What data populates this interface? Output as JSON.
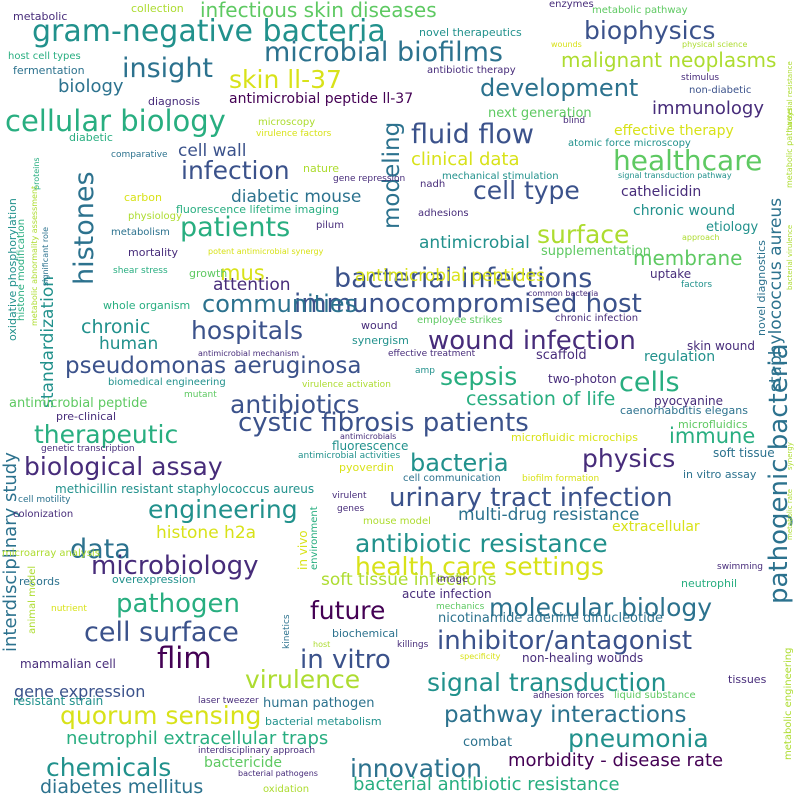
{
  "word_cloud": {
    "palette": {
      "purple": "#440154",
      "indigo": "#472c7a",
      "blue": "#3b528b",
      "steel": "#2c728e",
      "teal": "#21918c",
      "sea": "#28ae80",
      "green": "#5ec962",
      "lime": "#addc30",
      "yellow": "#d8e219"
    },
    "words": [
      {
        "text": "gram-negative bacteria",
        "color": "teal"
      },
      {
        "text": "cystic fibrosis patients",
        "color": "blue"
      },
      {
        "text": "immunocompromised host",
        "color": "blue"
      },
      {
        "text": "urinary tract infection",
        "color": "blue"
      },
      {
        "text": "bacterial infections",
        "color": "blue"
      },
      {
        "text": "pseudomonas aeruginosa",
        "color": "blue"
      },
      {
        "text": "wound infection",
        "color": "indigo"
      },
      {
        "text": "antibiotic resistance",
        "color": "teal"
      },
      {
        "text": "health care settings",
        "color": "yellow"
      },
      {
        "text": "signal transduction",
        "color": "teal"
      },
      {
        "text": "pathway interactions",
        "color": "steel"
      },
      {
        "text": "inhibitor/antagonist",
        "color": "blue"
      },
      {
        "text": "molecular biology",
        "color": "steel"
      },
      {
        "text": "microbial biofilms",
        "color": "steel"
      },
      {
        "text": "cellular biology",
        "color": "sea"
      },
      {
        "text": "biological assay",
        "color": "indigo"
      },
      {
        "text": "quorum sensing",
        "color": "yellow"
      },
      {
        "text": "pathogenic bacteria",
        "color": "steel"
      },
      {
        "text": "staphylococcus aureus",
        "color": "steel"
      },
      {
        "text": "interdisciplinary study",
        "color": "steel"
      },
      {
        "text": "healthcare",
        "color": "green"
      },
      {
        "text": "biophysics",
        "color": "blue"
      },
      {
        "text": "infectious skin diseases",
        "color": "green"
      },
      {
        "text": "malignant neoplasms",
        "color": "lime"
      },
      {
        "text": "development",
        "color": "steel"
      },
      {
        "text": "insight",
        "color": "steel"
      },
      {
        "text": "skin ll-37",
        "color": "yellow"
      },
      {
        "text": "fluid flow",
        "color": "blue"
      },
      {
        "text": "infection",
        "color": "blue"
      },
      {
        "text": "cell type",
        "color": "blue"
      },
      {
        "text": "patients",
        "color": "sea"
      },
      {
        "text": "surface",
        "color": "lime"
      },
      {
        "text": "histones",
        "color": "steel"
      },
      {
        "text": "modeling",
        "color": "steel"
      },
      {
        "text": "communities",
        "color": "steel"
      },
      {
        "text": "hospitals",
        "color": "blue"
      },
      {
        "text": "antibiotics",
        "color": "blue"
      },
      {
        "text": "therapeutic",
        "color": "sea"
      },
      {
        "text": "sepsis",
        "color": "sea"
      },
      {
        "text": "cells",
        "color": "sea"
      },
      {
        "text": "physics",
        "color": "indigo"
      },
      {
        "text": "bacteria",
        "color": "teal"
      },
      {
        "text": "engineering",
        "color": "teal"
      },
      {
        "text": "data",
        "color": "steel"
      },
      {
        "text": "microbiology",
        "color": "indigo"
      },
      {
        "text": "pathogen",
        "color": "sea"
      },
      {
        "text": "cell surface",
        "color": "blue"
      },
      {
        "text": "future",
        "color": "purple"
      },
      {
        "text": "flim",
        "color": "purple"
      },
      {
        "text": "in vitro",
        "color": "blue"
      },
      {
        "text": "virulence",
        "color": "lime"
      },
      {
        "text": "pneumonia",
        "color": "teal"
      },
      {
        "text": "innovation",
        "color": "steel"
      },
      {
        "text": "chemicals",
        "color": "teal"
      },
      {
        "text": "diabetes mellitus",
        "color": "steel"
      },
      {
        "text": "bacterial antibiotic resistance",
        "color": "sea"
      },
      {
        "text": "morbidity - disease rate",
        "color": "purple"
      },
      {
        "text": "neutrophil extracellular traps",
        "color": "sea"
      },
      {
        "text": "cessation of life",
        "color": "sea"
      },
      {
        "text": "immune",
        "color": "sea"
      },
      {
        "text": "membrane",
        "color": "green"
      },
      {
        "text": "mus",
        "color": "yellow"
      },
      {
        "text": "attention",
        "color": "indigo"
      },
      {
        "text": "chronic",
        "color": "teal"
      },
      {
        "text": "human",
        "color": "teal"
      },
      {
        "text": "standardization",
        "color": "teal"
      },
      {
        "text": "biology",
        "color": "steel"
      },
      {
        "text": "immunology",
        "color": "indigo"
      },
      {
        "text": "clinical data",
        "color": "yellow"
      },
      {
        "text": "diabetic mouse",
        "color": "steel"
      },
      {
        "text": "cell wall",
        "color": "blue"
      },
      {
        "text": "antimicrobial peptides",
        "color": "yellow"
      },
      {
        "text": "antimicrobial",
        "color": "teal"
      },
      {
        "text": "multi-drug resistance",
        "color": "steel"
      },
      {
        "text": "soft tissue infections",
        "color": "lime"
      },
      {
        "text": "gene expression",
        "color": "blue"
      },
      {
        "text": "histone h2a",
        "color": "yellow"
      },
      {
        "text": "antimicrobial peptide ll-37",
        "color": "purple"
      },
      {
        "text": "next generation",
        "color": "green"
      },
      {
        "text": "effective therapy",
        "color": "yellow"
      },
      {
        "text": "chronic wound",
        "color": "teal"
      },
      {
        "text": "cathelicidin",
        "color": "indigo"
      },
      {
        "text": "supplementation",
        "color": "green"
      },
      {
        "text": "antimicrobial peptide",
        "color": "green"
      },
      {
        "text": "extracellular",
        "color": "yellow"
      },
      {
        "text": "human pathogen",
        "color": "steel"
      },
      {
        "text": "combat",
        "color": "steel"
      },
      {
        "text": "bactericide",
        "color": "green"
      },
      {
        "text": "etiology",
        "color": "teal"
      },
      {
        "text": "regulation",
        "color": "teal"
      },
      {
        "text": "scaffold",
        "color": "indigo"
      },
      {
        "text": "skin wound",
        "color": "indigo"
      },
      {
        "text": "two-photon",
        "color": "indigo"
      },
      {
        "text": "pyocyanine",
        "color": "indigo"
      },
      {
        "text": "microfluidics",
        "color": "green"
      },
      {
        "text": "soft tissue",
        "color": "steel"
      },
      {
        "text": "in vitro assay",
        "color": "steel"
      },
      {
        "text": "caenorhabditis elegans",
        "color": "steel"
      },
      {
        "text": "microfluidic microchips",
        "color": "yellow"
      },
      {
        "text": "acute infection",
        "color": "indigo"
      },
      {
        "text": "nicotinamide adenine dinucleotide",
        "color": "steel"
      },
      {
        "text": "non-healing wounds",
        "color": "indigo"
      },
      {
        "text": "bacterial metabolism",
        "color": "teal"
      },
      {
        "text": "mammalian cell",
        "color": "indigo"
      },
      {
        "text": "resistant strain",
        "color": "teal"
      },
      {
        "text": "methicillin resistant staphylococcus aureus",
        "color": "teal"
      },
      {
        "text": "fluorescence lifetime imaging",
        "color": "sea"
      },
      {
        "text": "fluorescence",
        "color": "teal"
      },
      {
        "text": "uptake",
        "color": "indigo"
      },
      {
        "text": "growth",
        "color": "green"
      },
      {
        "text": "metabolic pathway",
        "color": "green"
      },
      {
        "text": "metabolic",
        "color": "indigo"
      },
      {
        "text": "enzymes",
        "color": "indigo"
      },
      {
        "text": "collection",
        "color": "lime"
      },
      {
        "text": "novel therapeutics",
        "color": "teal"
      },
      {
        "text": "fermentation",
        "color": "steel"
      },
      {
        "text": "host cell types",
        "color": "sea"
      },
      {
        "text": "antibiotic therapy",
        "color": "indigo"
      },
      {
        "text": "physical science",
        "color": "lime"
      },
      {
        "text": "stimulus",
        "color": "indigo"
      },
      {
        "text": "non-diabetic",
        "color": "blue"
      },
      {
        "text": "diagnosis",
        "color": "indigo"
      },
      {
        "text": "diabetic",
        "color": "sea"
      },
      {
        "text": "microscopy",
        "color": "lime"
      },
      {
        "text": "virulence factors",
        "color": "yellow"
      },
      {
        "text": "atomic force microscopy",
        "color": "teal"
      },
      {
        "text": "blind",
        "color": "indigo"
      },
      {
        "text": "comparative",
        "color": "steel"
      },
      {
        "text": "nature",
        "color": "lime"
      },
      {
        "text": "mechanical stimulation",
        "color": "teal"
      },
      {
        "text": "signal transduction pathway",
        "color": "teal"
      },
      {
        "text": "gene repression",
        "color": "indigo"
      },
      {
        "text": "carbon",
        "color": "yellow"
      },
      {
        "text": "nadh",
        "color": "indigo"
      },
      {
        "text": "physiology",
        "color": "lime"
      },
      {
        "text": "adhesions",
        "color": "indigo"
      },
      {
        "text": "metabolism",
        "color": "steel"
      },
      {
        "text": "pilum",
        "color": "indigo"
      },
      {
        "text": "mortality",
        "color": "indigo"
      },
      {
        "text": "potent antimicrobial synergy",
        "color": "yellow"
      },
      {
        "text": "shear stress",
        "color": "sea"
      },
      {
        "text": "approach",
        "color": "lime"
      },
      {
        "text": "factors",
        "color": "teal"
      },
      {
        "text": "common bacteria",
        "color": "indigo"
      },
      {
        "text": "whole organism",
        "color": "sea"
      },
      {
        "text": "employee strikes",
        "color": "green"
      },
      {
        "text": "chronic infection",
        "color": "indigo"
      },
      {
        "text": "wound",
        "color": "indigo"
      },
      {
        "text": "synergism",
        "color": "teal"
      },
      {
        "text": "antimicrobial mechanism",
        "color": "indigo"
      },
      {
        "text": "effective treatment",
        "color": "indigo"
      },
      {
        "text": "biomedical engineering",
        "color": "teal"
      },
      {
        "text": "virulence activation",
        "color": "lime"
      },
      {
        "text": "amp",
        "color": "teal"
      },
      {
        "text": "mutant",
        "color": "green"
      },
      {
        "text": "pre-clinical",
        "color": "indigo"
      },
      {
        "text": "genetic transcription",
        "color": "indigo"
      },
      {
        "text": "antimicrobials",
        "color": "indigo"
      },
      {
        "text": "antimicrobial activities",
        "color": "teal"
      },
      {
        "text": "pyoverdin",
        "color": "yellow"
      },
      {
        "text": "biofilm formation",
        "color": "yellow"
      },
      {
        "text": "cell communication",
        "color": "steel"
      },
      {
        "text": "cell motility",
        "color": "steel"
      },
      {
        "text": "colonization",
        "color": "indigo"
      },
      {
        "text": "virulent",
        "color": "indigo"
      },
      {
        "text": "genes",
        "color": "indigo"
      },
      {
        "text": "mouse model",
        "color": "lime"
      },
      {
        "text": "microarray analysis",
        "color": "lime"
      },
      {
        "text": "records",
        "color": "steel"
      },
      {
        "text": "overexpression",
        "color": "teal"
      },
      {
        "text": "image",
        "color": "indigo"
      },
      {
        "text": "neutrophil",
        "color": "sea"
      },
      {
        "text": "swimming",
        "color": "indigo"
      },
      {
        "text": "nutrient",
        "color": "yellow"
      },
      {
        "text": "mechanics",
        "color": "green"
      },
      {
        "text": "kinetics",
        "color": "steel"
      },
      {
        "text": "host",
        "color": "lime"
      },
      {
        "text": "killings",
        "color": "indigo"
      },
      {
        "text": "biochemical",
        "color": "steel"
      },
      {
        "text": "specificity",
        "color": "yellow"
      },
      {
        "text": "adhesion forces",
        "color": "indigo"
      },
      {
        "text": "liquid substance",
        "color": "green"
      },
      {
        "text": "tissues",
        "color": "indigo"
      },
      {
        "text": "laser tweezer",
        "color": "indigo"
      },
      {
        "text": "interdisciplinary approach",
        "color": "indigo"
      },
      {
        "text": "bacterial pathogens",
        "color": "indigo"
      },
      {
        "text": "oxidation",
        "color": "lime"
      },
      {
        "text": "wounds",
        "color": "yellow"
      },
      {
        "text": "oxidative phosphorylation",
        "color": "teal"
      },
      {
        "text": "histone modification",
        "color": "sea"
      },
      {
        "text": "metabolic abnormality assessment",
        "color": "lime"
      },
      {
        "text": "proteins",
        "color": "sea"
      },
      {
        "text": "significant role",
        "color": "steel"
      },
      {
        "text": "novel diagnostics",
        "color": "steel"
      },
      {
        "text": "in vivo",
        "color": "yellow"
      },
      {
        "text": "environment",
        "color": "sea"
      },
      {
        "text": "animal model",
        "color": "lime"
      },
      {
        "text": "metabolic engineering",
        "color": "lime"
      },
      {
        "text": "metabolic pathways",
        "color": "lime"
      },
      {
        "text": "bacterial resistance",
        "color": "lime"
      },
      {
        "text": "bacterial virulence",
        "color": "lime"
      },
      {
        "text": "metabolic rate",
        "color": "lime"
      },
      {
        "text": "synergy",
        "color": "lime"
      }
    ]
  }
}
